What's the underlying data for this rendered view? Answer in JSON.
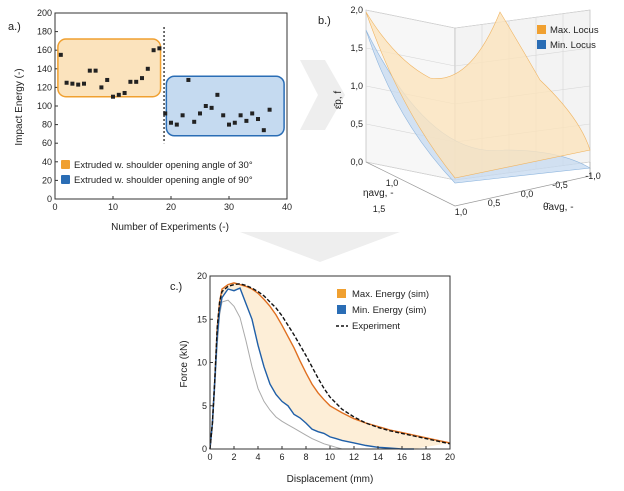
{
  "colors": {
    "orange": "#f0a030",
    "orange_fill": "#fbe3bd",
    "orange_dark": "#e07020",
    "blue": "#2a6db5",
    "blue_fill": "#c5daf0",
    "blue_dark": "#1f5fa8",
    "gray_bg": "#eeeeee"
  },
  "chart_data": [
    {
      "id": "a",
      "type": "scatter",
      "panel_label": "a.)",
      "xlabel": "Number of Experiments (-)",
      "ylabel": "Impact Energy (-)",
      "xlim": [
        0,
        40
      ],
      "ylim": [
        0,
        200
      ],
      "xticks": [
        0,
        10,
        20,
        30,
        40
      ],
      "yticks": [
        0,
        20,
        40,
        60,
        80,
        100,
        120,
        140,
        160,
        180,
        200
      ],
      "divider_x": 18.8,
      "groups": [
        {
          "name": "Extruded w. shoulder opening angle of 30°",
          "color": "orange",
          "x_range": [
            0.5,
            18.2
          ],
          "y_range": [
            110,
            172
          ],
          "points": [
            [
              1,
              155
            ],
            [
              2,
              125
            ],
            [
              3,
              124
            ],
            [
              4,
              123
            ],
            [
              5,
              124
            ],
            [
              6,
              138
            ],
            [
              7,
              138
            ],
            [
              8,
              120
            ],
            [
              9,
              128
            ],
            [
              10,
              110
            ],
            [
              11,
              112
            ],
            [
              12,
              114
            ],
            [
              13,
              126
            ],
            [
              14,
              126
            ],
            [
              15,
              130
            ],
            [
              16,
              140
            ],
            [
              17,
              160
            ],
            [
              18,
              162
            ]
          ]
        },
        {
          "name": "Extruded w. shoulder opening angle of 90°",
          "color": "blue",
          "x_range": [
            19.2,
            39.5
          ],
          "y_range": [
            68,
            132
          ],
          "points": [
            [
              19,
              92
            ],
            [
              20,
              82
            ],
            [
              21,
              80
            ],
            [
              22,
              90
            ],
            [
              23,
              128
            ],
            [
              24,
              83
            ],
            [
              25,
              92
            ],
            [
              26,
              100
            ],
            [
              27,
              98
            ],
            [
              28,
              112
            ],
            [
              29,
              90
            ],
            [
              30,
              80
            ],
            [
              31,
              82
            ],
            [
              32,
              90
            ],
            [
              33,
              84
            ],
            [
              34,
              92
            ],
            [
              35,
              86
            ],
            [
              36,
              74
            ],
            [
              37,
              96
            ]
          ]
        }
      ]
    },
    {
      "id": "b",
      "type": "surface3d",
      "panel_label": "b.)",
      "zlabel": "ε̄p, f",
      "xlabel": "ηavg, -",
      "ylabel": "θ̄avg, -",
      "eta_ticks": [
        "1,0",
        "1,5"
      ],
      "theta_ticks": [
        "1,0",
        "0,5",
        "0,0",
        "-0,5",
        "-1,0"
      ],
      "z_ticks": [
        "0,0",
        "0,5",
        "1,0",
        "1,5",
        "2,0"
      ],
      "legend": [
        {
          "name": "Max. Locus",
          "color": "orange"
        },
        {
          "name": "Min. Locus",
          "color": "blue"
        }
      ]
    },
    {
      "id": "c",
      "type": "line",
      "panel_label": "c.)",
      "xlabel": "Displacement (mm)",
      "ylabel": "Force (kN)",
      "xlim": [
        0,
        20
      ],
      "ylim": [
        0,
        20
      ],
      "xticks": [
        0,
        2,
        4,
        6,
        8,
        10,
        12,
        14,
        16,
        18,
        20
      ],
      "yticks": [
        0,
        5,
        10,
        15,
        20
      ],
      "series": [
        {
          "name": "Max. Energy (sim)",
          "color": "orange_dark",
          "x": [
            0,
            0.2,
            0.4,
            0.6,
            0.8,
            1.0,
            1.5,
            2.0,
            2.5,
            3.0,
            3.5,
            4.0,
            4.5,
            5.0,
            5.5,
            6.0,
            6.5,
            7.0,
            7.5,
            8.0,
            8.5,
            9.0,
            9.5,
            10,
            11,
            12,
            13,
            14,
            15,
            16,
            17,
            18,
            19,
            20
          ],
          "y": [
            0,
            3,
            8,
            14,
            17,
            18.5,
            19,
            19.2,
            19,
            18.8,
            18.5,
            18,
            17.3,
            16.5,
            15.5,
            14.3,
            13,
            11.7,
            10.2,
            8.8,
            7.5,
            6.5,
            5.7,
            5.0,
            4.2,
            3.5,
            3.0,
            2.6,
            2.2,
            1.9,
            1.6,
            1.3,
            1.0,
            0.7
          ]
        },
        {
          "name": "Min. Energy (sim)",
          "color": "blue_dark",
          "x": [
            0,
            0.2,
            0.4,
            0.6,
            0.8,
            1.0,
            1.5,
            2.0,
            2.5,
            3.0,
            3.5,
            4.0,
            4.5,
            5.0,
            5.5,
            6.0,
            6.5,
            7.0,
            7.5,
            8.0,
            8.5,
            9.0,
            9.5,
            10,
            10.5,
            11,
            12,
            13,
            14,
            15,
            16,
            17
          ],
          "y": [
            0,
            3,
            8,
            13,
            16,
            17.5,
            18.5,
            18.3,
            18.6,
            16.8,
            15,
            12,
            9.5,
            7.5,
            6.3,
            5.5,
            5.0,
            4.0,
            3.6,
            3.0,
            2.3,
            2.0,
            1.8,
            1.4,
            1.2,
            1.0,
            0.7,
            0.4,
            0.2,
            0.1,
            0.0,
            0.0
          ]
        },
        {
          "name": "Experiment",
          "color": "black",
          "dashed": true,
          "x": [
            0,
            0.2,
            0.4,
            0.6,
            0.8,
            1.0,
            1.5,
            2.0,
            2.5,
            3.0,
            3.5,
            4.0,
            4.5,
            5.0,
            5.5,
            6.0,
            6.5,
            7.0,
            7.5,
            8.0,
            8.5,
            9.0,
            9.5,
            10,
            11,
            12,
            13,
            14,
            15,
            16,
            17,
            18,
            19,
            20
          ],
          "y": [
            0,
            3,
            8,
            14,
            17,
            18.2,
            18.8,
            19,
            19.1,
            18.9,
            18.6,
            18.2,
            17.7,
            17,
            16.3,
            15.4,
            14.3,
            13.2,
            12,
            10.8,
            9.5,
            8.2,
            7.0,
            6.0,
            4.6,
            3.7,
            3.0,
            2.5,
            2.1,
            1.8,
            1.5,
            1.2,
            0.9,
            0.6
          ]
        },
        {
          "name": "",
          "color": "gray",
          "legend": false,
          "x": [
            0,
            0.2,
            0.4,
            0.6,
            0.8,
            1.0,
            1.5,
            2.0,
            2.5,
            3.0,
            3.5,
            4.0,
            4.5,
            5.0,
            5.5,
            6.0,
            6.5,
            7.0,
            7.5,
            8.0,
            8.5,
            9.0,
            9.5,
            10,
            10.5,
            11
          ],
          "y": [
            0,
            2.5,
            7,
            12,
            15.5,
            17,
            17.2,
            16.5,
            15.2,
            12.5,
            9.5,
            7.0,
            5.5,
            4.5,
            3.7,
            3.2,
            2.8,
            2.4,
            2.0,
            1.6,
            1.2,
            0.9,
            0.6,
            0.4,
            0.2,
            0.0
          ]
        }
      ]
    }
  ]
}
